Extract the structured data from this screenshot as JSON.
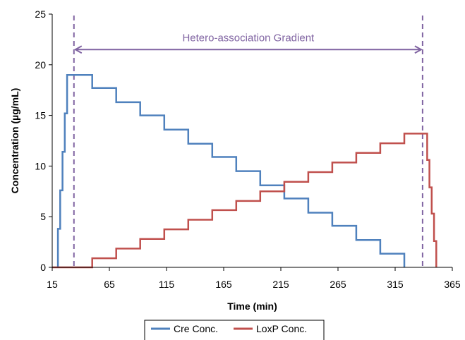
{
  "chart_data": {
    "type": "line",
    "title": "",
    "xlabel": "Time (min)",
    "ylabel": "Concentration (µg/mL)",
    "xlim": [
      15,
      365
    ],
    "ylim": [
      0,
      25
    ],
    "x_ticks": [
      15,
      65,
      115,
      165,
      215,
      265,
      315,
      365
    ],
    "y_ticks": [
      0,
      5,
      10,
      15,
      20,
      25
    ],
    "grid": false,
    "legend_position": "bottom",
    "annotation": {
      "text": "Hetero-association Gradient",
      "x_start": 34,
      "x_end": 339,
      "y": 21.5,
      "color": "#8064A2"
    },
    "vlines": [
      {
        "x": 34,
        "color": "#8064A2"
      },
      {
        "x": 339,
        "color": "#8064A2"
      }
    ],
    "series": [
      {
        "name": "Cre Conc.",
        "color": "#4F81BD",
        "points": [
          [
            20,
            0
          ],
          [
            20,
            3.8
          ],
          [
            22,
            3.8
          ],
          [
            22,
            7.6
          ],
          [
            24,
            7.6
          ],
          [
            24,
            11.4
          ],
          [
            26,
            11.4
          ],
          [
            26,
            15.2
          ],
          [
            28,
            15.2
          ],
          [
            28,
            19
          ],
          [
            50,
            19
          ],
          [
            50,
            17.7
          ],
          [
            71,
            17.7
          ],
          [
            71,
            16.3
          ],
          [
            92,
            16.3
          ],
          [
            92,
            15
          ],
          [
            113,
            15
          ],
          [
            113,
            13.6
          ],
          [
            134,
            13.6
          ],
          [
            134,
            12.2
          ],
          [
            155,
            12.2
          ],
          [
            155,
            10.9
          ],
          [
            176,
            10.9
          ],
          [
            176,
            9.5
          ],
          [
            197,
            9.5
          ],
          [
            197,
            8.1
          ],
          [
            218,
            8.1
          ],
          [
            218,
            6.8
          ],
          [
            239,
            6.8
          ],
          [
            239,
            5.4
          ],
          [
            260,
            5.4
          ],
          [
            260,
            4.1
          ],
          [
            281,
            4.1
          ],
          [
            281,
            2.7
          ],
          [
            302,
            2.7
          ],
          [
            302,
            1.35
          ],
          [
            323,
            1.35
          ],
          [
            323,
            0
          ]
        ]
      },
      {
        "name": "LoxP Conc.",
        "color": "#C0504D",
        "points": [
          [
            15,
            0
          ],
          [
            50,
            0
          ],
          [
            50,
            0.9
          ],
          [
            71,
            0.9
          ],
          [
            71,
            1.85
          ],
          [
            92,
            1.85
          ],
          [
            92,
            2.8
          ],
          [
            113,
            2.8
          ],
          [
            113,
            3.75
          ],
          [
            134,
            3.75
          ],
          [
            134,
            4.7
          ],
          [
            155,
            4.7
          ],
          [
            155,
            5.65
          ],
          [
            176,
            5.65
          ],
          [
            176,
            6.55
          ],
          [
            197,
            6.55
          ],
          [
            197,
            7.5
          ],
          [
            218,
            7.5
          ],
          [
            218,
            8.45
          ],
          [
            239,
            8.45
          ],
          [
            239,
            9.4
          ],
          [
            260,
            9.4
          ],
          [
            260,
            10.35
          ],
          [
            281,
            10.35
          ],
          [
            281,
            11.3
          ],
          [
            302,
            11.3
          ],
          [
            302,
            12.25
          ],
          [
            323,
            12.25
          ],
          [
            323,
            13.2
          ],
          [
            343,
            13.2
          ],
          [
            343,
            10.6
          ],
          [
            345,
            10.6
          ],
          [
            345,
            7.9
          ],
          [
            347,
            7.9
          ],
          [
            347,
            5.3
          ],
          [
            349,
            5.3
          ],
          [
            349,
            2.6
          ],
          [
            351,
            2.6
          ],
          [
            351,
            0
          ]
        ]
      }
    ]
  }
}
